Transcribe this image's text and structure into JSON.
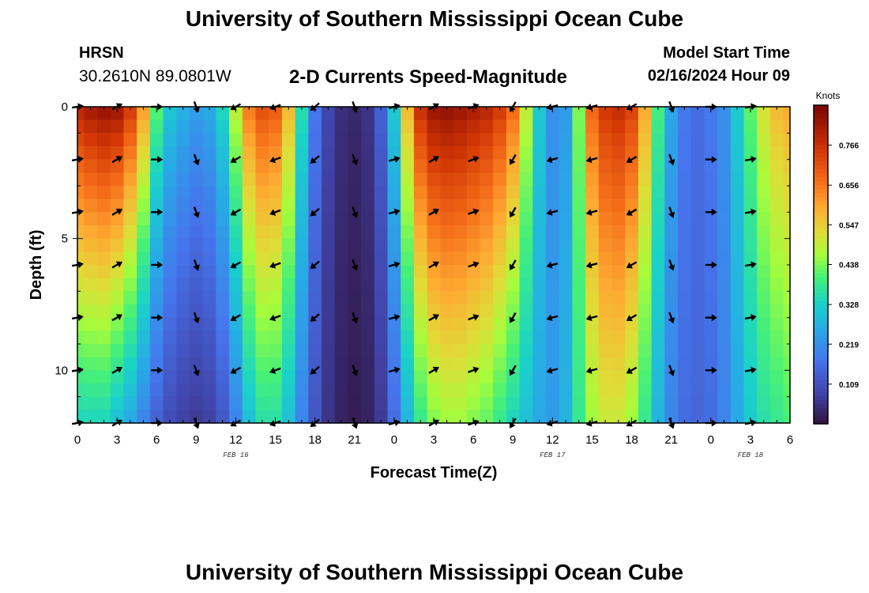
{
  "header": {
    "title": "University of Southern Mississippi Ocean Cube",
    "station": "HRSN",
    "latlon": "30.2610N  89.0801W",
    "plot_title": "2-D Currents Speed-Magnitude",
    "start_label": "Model Start Time",
    "start_value": "02/16/2024 Hour 09"
  },
  "footer": {
    "title": "University of Southern Mississippi Ocean Cube"
  },
  "chart_data": {
    "type": "heatmap",
    "title": "2-D Currents Speed-Magnitude",
    "xlabel": "Forecast Time(Z)",
    "ylabel": "Depth (ft)",
    "x_hours_since_feb16_00z": [
      0,
      54
    ],
    "ylim": [
      12,
      0
    ],
    "y_ticks": [
      0,
      5,
      10
    ],
    "y_tick_labels": [
      "0",
      "5",
      "10"
    ],
    "x_tick_labels": [
      "0",
      "3",
      "6",
      "9",
      "12",
      "15",
      "18",
      "21",
      "0",
      "3",
      "6",
      "9",
      "12",
      "15",
      "18",
      "21",
      "0",
      "3",
      "6"
    ],
    "date_labels": [
      {
        "text": "FEB 16",
        "at_hour": 12
      },
      {
        "text": "FEB 17",
        "at_hour": 36
      },
      {
        "text": "FEB 18",
        "at_hour": 51
      }
    ],
    "colorbar": {
      "unit": "Knots",
      "min": 0.0,
      "max": 0.876,
      "ticks": [
        0.109,
        0.219,
        0.328,
        0.438,
        0.547,
        0.656,
        0.766
      ],
      "tick_labels": [
        "0.109",
        "0.219",
        "0.328",
        "0.438",
        "0.547",
        "0.656",
        "0.766"
      ]
    },
    "columns_hours": [
      0,
      1,
      2,
      3,
      4,
      5,
      6,
      7,
      8,
      9,
      10,
      11,
      12,
      13,
      14,
      15,
      16,
      17,
      18,
      19,
      20,
      21,
      22,
      23,
      24,
      25,
      26,
      27,
      28,
      29,
      30,
      31,
      32,
      33,
      34,
      35,
      36,
      37,
      38,
      39,
      40,
      41,
      42,
      43,
      44,
      45,
      46,
      47,
      48,
      49,
      50,
      51,
      52,
      53,
      54
    ],
    "surface_speed": [
      0.8,
      0.83,
      0.85,
      0.84,
      0.76,
      0.62,
      0.42,
      0.32,
      0.28,
      0.25,
      0.27,
      0.35,
      0.5,
      0.66,
      0.72,
      0.7,
      0.58,
      0.36,
      0.18,
      0.09,
      0.05,
      0.04,
      0.06,
      0.14,
      0.32,
      0.58,
      0.78,
      0.84,
      0.85,
      0.84,
      0.82,
      0.8,
      0.76,
      0.68,
      0.5,
      0.32,
      0.22,
      0.24,
      0.44,
      0.68,
      0.76,
      0.78,
      0.74,
      0.6,
      0.4,
      0.26,
      0.18,
      0.16,
      0.18,
      0.22,
      0.32,
      0.42,
      0.52,
      0.58,
      0.6
    ],
    "bottom_speed": [
      0.34,
      0.34,
      0.34,
      0.3,
      0.26,
      0.2,
      0.14,
      0.1,
      0.08,
      0.07,
      0.08,
      0.12,
      0.2,
      0.3,
      0.36,
      0.36,
      0.3,
      0.2,
      0.12,
      0.06,
      0.03,
      0.02,
      0.03,
      0.07,
      0.16,
      0.28,
      0.38,
      0.44,
      0.46,
      0.46,
      0.44,
      0.42,
      0.38,
      0.34,
      0.3,
      0.26,
      0.24,
      0.28,
      0.38,
      0.46,
      0.5,
      0.5,
      0.46,
      0.38,
      0.28,
      0.2,
      0.16,
      0.15,
      0.16,
      0.2,
      0.26,
      0.32,
      0.36,
      0.38,
      0.4
    ],
    "surface_direction_deg": [
      80,
      70,
      65,
      60,
      60,
      70,
      90,
      120,
      150,
      160,
      200,
      230,
      240,
      250,
      250,
      250,
      245,
      240,
      230,
      200,
      170,
      160,
      120,
      90,
      75,
      65,
      60,
      60,
      60,
      65,
      70,
      90,
      150,
      210,
      240,
      250,
      255,
      255,
      255,
      255,
      250,
      245,
      240,
      230,
      200,
      160,
      130,
      100,
      90,
      90,
      85,
      80,
      75,
      70,
      70
    ],
    "arrow_depths_ft": [
      0,
      2,
      4,
      6,
      8,
      10,
      12
    ],
    "arrow_hours": [
      0,
      3,
      6,
      9,
      12,
      15,
      18,
      21,
      24,
      27,
      30,
      33,
      36,
      39,
      42,
      45,
      48,
      51
    ]
  }
}
